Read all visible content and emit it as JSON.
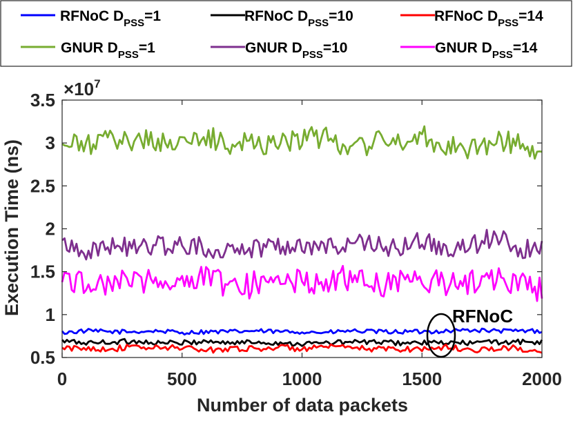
{
  "chart_data": {
    "type": "line",
    "xlabel": "Number of data packets",
    "ylabel": "Execution Time (ns)",
    "y_exponent": "×10",
    "y_exponent_power": "7",
    "xlim": [
      0,
      2000
    ],
    "ylim": [
      0.5,
      3.5
    ],
    "x_ticks": [
      0,
      500,
      1000,
      1500,
      2000
    ],
    "x_tick_labels": [
      "0",
      "500",
      "1000",
      "1500",
      "2000"
    ],
    "y_ticks": [
      0.5,
      1,
      1.5,
      2,
      2.5,
      3,
      3.5
    ],
    "y_tick_labels": [
      "0.5",
      "1",
      "1.5",
      "2",
      "2.5",
      "3",
      "3.5"
    ],
    "grid": false,
    "legend_position": "top",
    "annotation": "RFNoC",
    "colors": {
      "rfnoc1": "#0000ff",
      "rfnoc10": "#000000",
      "rfnoc14": "#ff0000",
      "gnur1": "#77ac30",
      "gnur10": "#7e2f8e",
      "gnur14": "#ff00ff"
    },
    "x": [
      0,
      100,
      200,
      300,
      400,
      500,
      600,
      700,
      800,
      900,
      1000,
      1100,
      1200,
      1300,
      1400,
      1500,
      1600,
      1700,
      1800,
      1900,
      2000
    ],
    "series": [
      {
        "key": "rfnoc1",
        "name": "RFNoC D",
        "sub": "PSS",
        "tail": "=1",
        "values": [
          0.79,
          0.81,
          0.8,
          0.8,
          0.81,
          0.79,
          0.8,
          0.8,
          0.81,
          0.8,
          0.8,
          0.79,
          0.81,
          0.8,
          0.8,
          0.8,
          0.81,
          0.82,
          0.81,
          0.81,
          0.81
        ]
      },
      {
        "key": "rfnoc10",
        "name": "RFNoC D",
        "sub": "PSS",
        "tail": "=10",
        "values": [
          0.69,
          0.67,
          0.68,
          0.69,
          0.67,
          0.67,
          0.69,
          0.67,
          0.68,
          0.67,
          0.66,
          0.67,
          0.68,
          0.68,
          0.67,
          0.67,
          0.67,
          0.67,
          0.68,
          0.68,
          0.68
        ]
      },
      {
        "key": "rfnoc14",
        "name": "RFNoC D",
        "sub": "PSS",
        "tail": "=14",
        "values": [
          0.6,
          0.61,
          0.6,
          0.62,
          0.61,
          0.62,
          0.58,
          0.61,
          0.6,
          0.62,
          0.6,
          0.62,
          0.61,
          0.6,
          0.6,
          0.6,
          0.62,
          0.59,
          0.6,
          0.61,
          0.54
        ]
      },
      {
        "key": "gnur1",
        "name": "GNUR D",
        "sub": "PSS",
        "tail": "=1",
        "values": [
          2.95,
          2.98,
          3.02,
          3.05,
          3.02,
          3.0,
          3.05,
          3.0,
          3.0,
          3.02,
          3.05,
          3.05,
          2.98,
          3.0,
          3.02,
          3.08,
          2.98,
          2.95,
          3.0,
          3.02,
          2.8
        ]
      },
      {
        "key": "gnur10",
        "name": "GNUR D",
        "sub": "PSS",
        "tail": "=10",
        "values": [
          1.85,
          1.75,
          1.8,
          1.78,
          1.82,
          1.8,
          1.78,
          1.75,
          1.78,
          1.82,
          1.8,
          1.78,
          1.85,
          1.8,
          1.78,
          1.85,
          1.75,
          1.8,
          1.9,
          1.78,
          1.75
        ]
      },
      {
        "key": "gnur14",
        "name": "GNUR D",
        "sub": "PSS",
        "tail": "=14",
        "values": [
          1.38,
          1.4,
          1.35,
          1.42,
          1.4,
          1.38,
          1.45,
          1.32,
          1.35,
          1.4,
          1.38,
          1.4,
          1.42,
          1.35,
          1.4,
          1.38,
          1.35,
          1.4,
          1.42,
          1.38,
          1.27
        ]
      }
    ]
  }
}
